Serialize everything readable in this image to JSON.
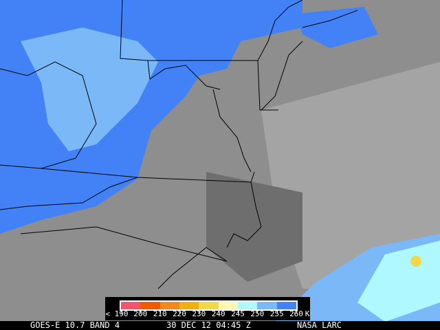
{
  "footer": {
    "satellite": "GOES-E 10.7 BAND 4",
    "datetime": "30 DEC 12 04:45 Z",
    "credit": "NASA LARC"
  },
  "legend": {
    "labels": [
      "< 190",
      "200",
      "210",
      "220",
      "230",
      "240",
      "245",
      "250",
      "255",
      "260",
      "K"
    ],
    "colors": [
      "#f0566e",
      "#f05a00",
      "#f08a20",
      "#f0b010",
      "#f0d848",
      "#fff8b0",
      "#b0f8ff",
      "#7ab8f8",
      "#4282f6"
    ]
  },
  "colors": {
    "cloud_blue": "#4282f6",
    "cloud_lightblue": "#7ab8f8",
    "background_gray": "#8c8c8c",
    "borders": "#000000"
  }
}
